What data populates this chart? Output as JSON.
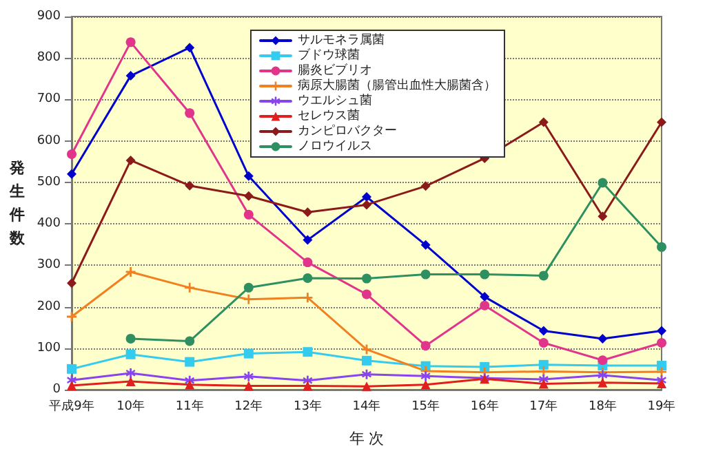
{
  "chart_data": {
    "type": "line",
    "xlabel": "年 次",
    "ylabel": "発生件数",
    "categories": [
      "平成9年",
      "10年",
      "11年",
      "12年",
      "13年",
      "14年",
      "15年",
      "16年",
      "17年",
      "18年",
      "19年"
    ],
    "ylim": [
      0,
      900
    ],
    "yticks": [
      0,
      100,
      200,
      300,
      400,
      500,
      600,
      700,
      800,
      900
    ],
    "grid": "y",
    "legend": "top",
    "series": [
      {
        "name": "サルモネラ属菌",
        "color": "#0000cc",
        "marker": "diamond",
        "values": [
          520,
          757,
          825,
          515,
          361,
          465,
          349,
          224,
          142,
          123,
          142
        ]
      },
      {
        "name": "ブドウ球菌",
        "color": "#33ccee",
        "marker": "square",
        "values": [
          50,
          85,
          67,
          87,
          91,
          70,
          57,
          55,
          60,
          58,
          58
        ]
      },
      {
        "name": "腸炎ビブリオ",
        "color": "#e0358a",
        "marker": "circle",
        "values": [
          568,
          838,
          667,
          422,
          307,
          230,
          106,
          203,
          113,
          71,
          113
        ]
      },
      {
        "name": "病原大腸菌（腸管出血性大腸菌含）",
        "color": "#f08020",
        "marker": "cross",
        "values": [
          176,
          284,
          246,
          218,
          222,
          97,
          45,
          42,
          44,
          42,
          43
        ]
      },
      {
        "name": "ウエルシュ菌",
        "color": "#8844ee",
        "marker": "star",
        "values": [
          23,
          40,
          22,
          32,
          22,
          37,
          33,
          28,
          25,
          35,
          23
        ]
      },
      {
        "name": "セレウス菌",
        "color": "#e02020",
        "marker": "triangle",
        "values": [
          10,
          20,
          12,
          9,
          9,
          8,
          12,
          26,
          14,
          17,
          15
        ]
      },
      {
        "name": "カンピロバクター",
        "color": "#8b1a1a",
        "marker": "diamond",
        "values": [
          257,
          553,
          492,
          467,
          428,
          446,
          491,
          558,
          645,
          418,
          645
        ]
      },
      {
        "name": "ノロウイルス",
        "color": "#2e9060",
        "marker": "circle",
        "values": [
          null,
          123,
          117,
          246,
          269,
          268,
          278,
          278,
          275,
          499,
          344
        ]
      }
    ]
  }
}
